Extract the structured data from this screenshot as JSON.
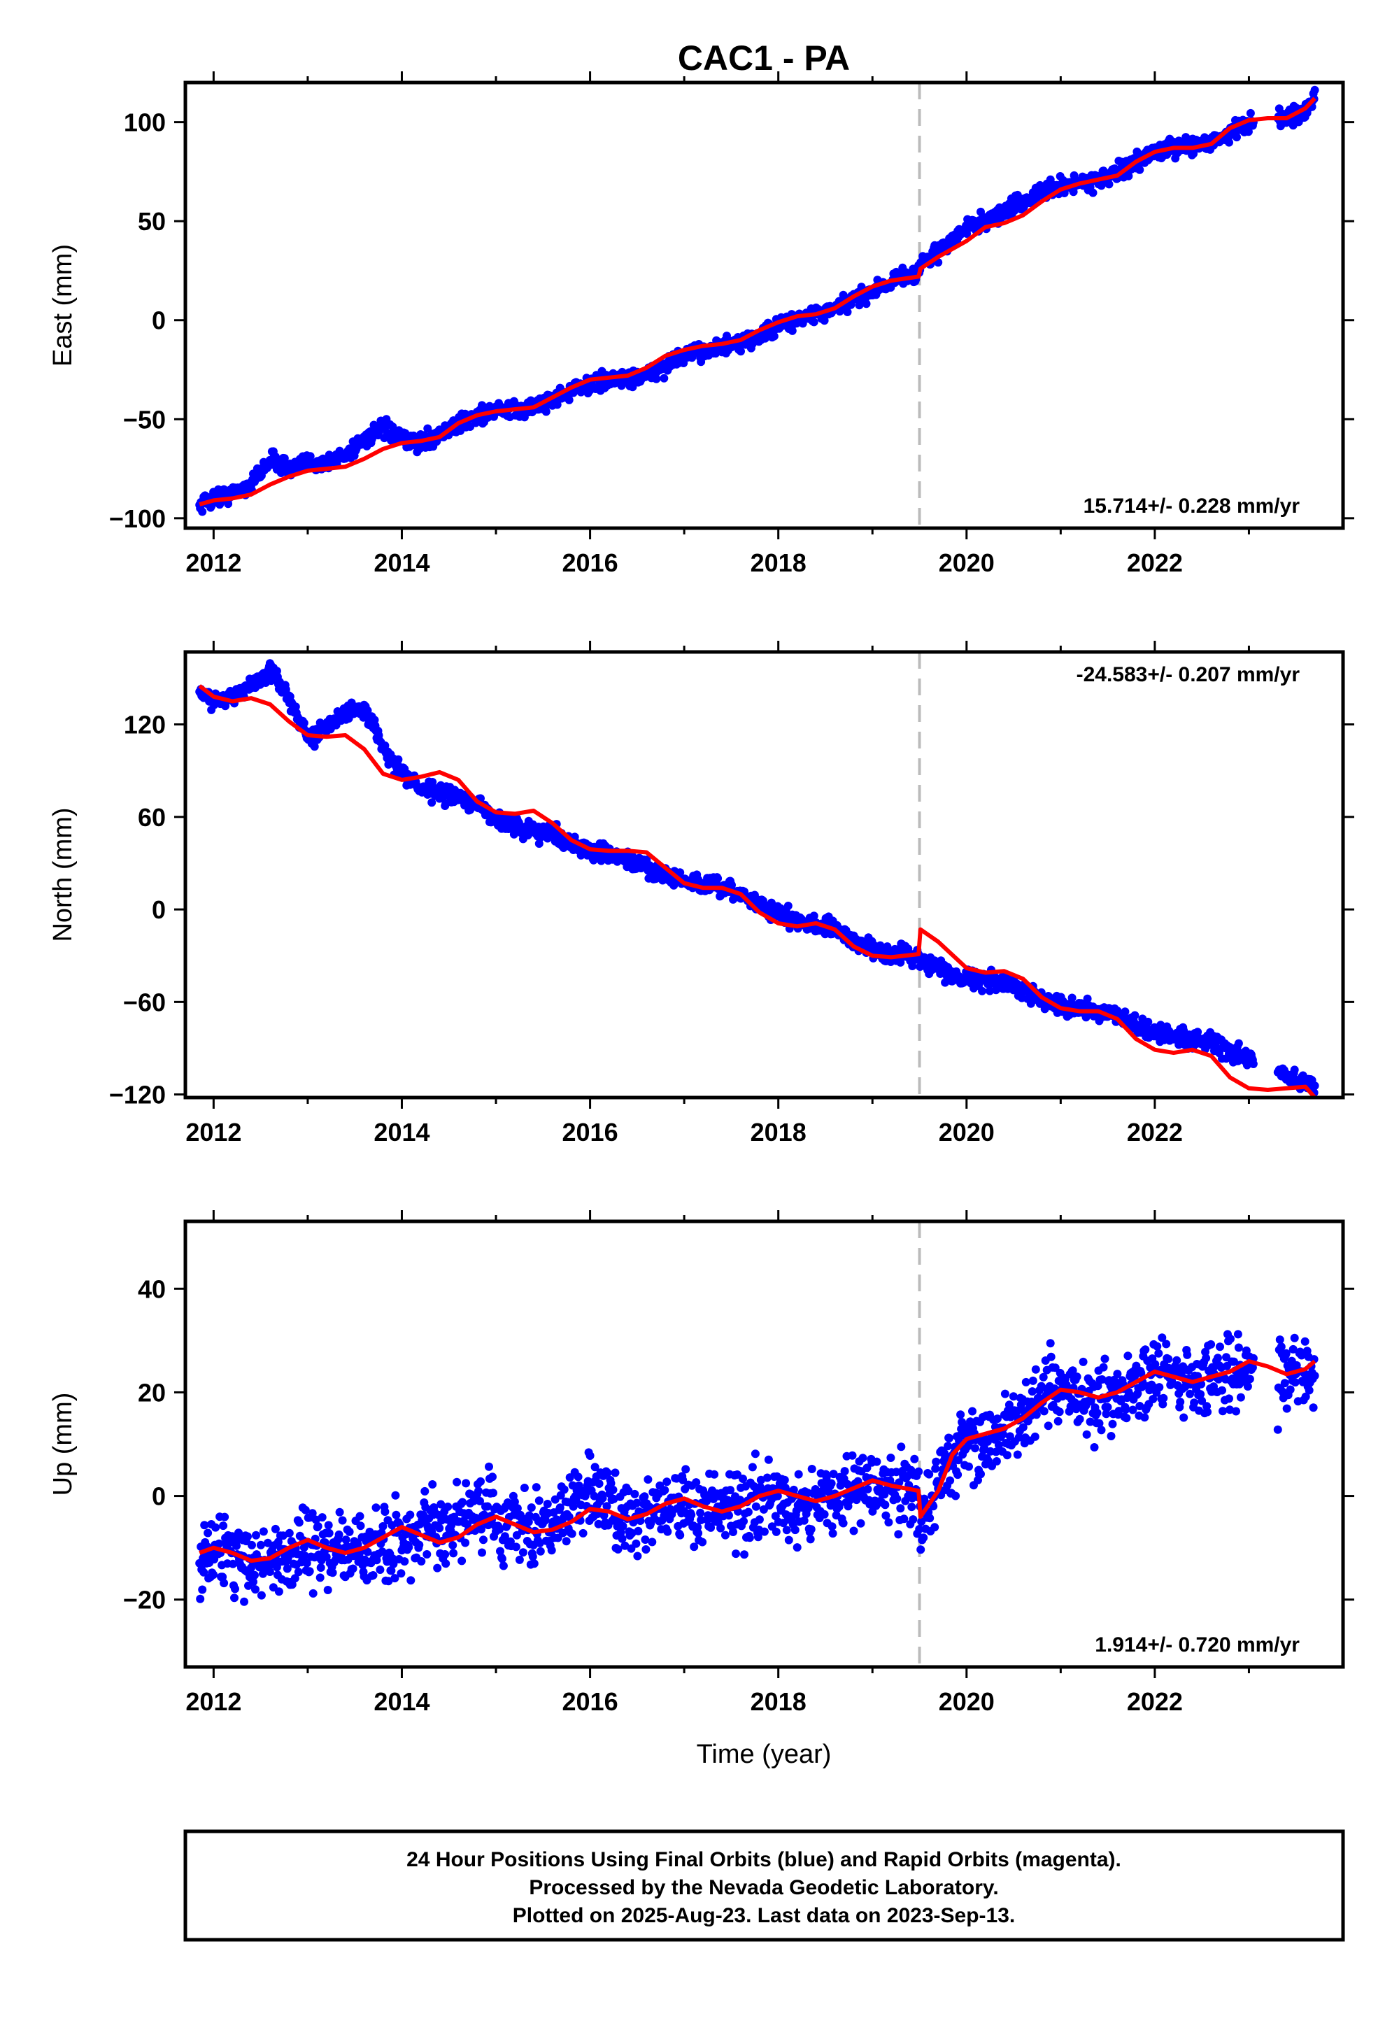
{
  "title": "CAC1 - PA",
  "x_axis_label": "Time (year)",
  "colors": {
    "final_orbits": "#0000ff",
    "model_fit": "#ff0000",
    "offset_marker": "#bbbbbb",
    "frame": "#000000"
  },
  "chart_data": [
    {
      "type": "scatter",
      "name": "east",
      "ylabel": "East (mm)",
      "xlim": [
        2011.7,
        2024.0
      ],
      "ylim": [
        -105,
        120
      ],
      "xticks": [
        2012,
        2014,
        2016,
        2018,
        2020,
        2022
      ],
      "yticks": [
        -100,
        -50,
        0,
        50,
        100
      ],
      "offset_epoch": 2019.5,
      "rate_text": "15.714+/- 0.228 mm/yr",
      "rate_position": "bottom-right",
      "noise": 3,
      "observations_x": [
        2011.85,
        2012.0,
        2012.2,
        2012.4,
        2012.6,
        2012.8,
        2013.0,
        2013.2,
        2013.4,
        2013.6,
        2013.8,
        2014.0,
        2014.2,
        2014.5,
        2014.8,
        2015.0,
        2015.3,
        2015.6,
        2016.0,
        2016.3,
        2016.6,
        2017.0,
        2017.3,
        2017.6,
        2018.0,
        2018.3,
        2018.6,
        2019.0,
        2019.3,
        2019.49,
        2019.51,
        2019.8,
        2020.0,
        2020.3,
        2020.6,
        2021.0,
        2021.3,
        2021.6,
        2022.0,
        2022.3,
        2022.6,
        2023.0,
        2023.3,
        2023.6,
        2023.7
      ],
      "observations_y": [
        -93,
        -90,
        -88,
        -83,
        -70,
        -75,
        -72,
        -72,
        -68,
        -60,
        -55,
        -60,
        -62,
        -55,
        -48,
        -46,
        -45,
        -40,
        -32,
        -30,
        -28,
        -18,
        -14,
        -12,
        -3,
        2,
        5,
        15,
        22,
        24,
        28,
        38,
        47,
        52,
        60,
        68,
        70,
        74,
        85,
        88,
        90,
        100,
        102,
        104,
        112
      ],
      "fit_x": [
        2011.85,
        2012.0,
        2012.2,
        2012.4,
        2012.6,
        2012.8,
        2013.0,
        2013.2,
        2013.4,
        2013.6,
        2013.8,
        2014.0,
        2014.2,
        2014.4,
        2014.6,
        2014.8,
        2015.0,
        2015.2,
        2015.4,
        2015.6,
        2015.8,
        2016.0,
        2016.2,
        2016.4,
        2016.6,
        2016.8,
        2017.0,
        2017.2,
        2017.4,
        2017.6,
        2017.8,
        2018.0,
        2018.2,
        2018.4,
        2018.6,
        2018.8,
        2019.0,
        2019.2,
        2019.49,
        2019.51,
        2019.7,
        2020.0,
        2020.2,
        2020.4,
        2020.6,
        2020.8,
        2021.0,
        2021.2,
        2021.4,
        2021.6,
        2021.8,
        2022.0,
        2022.2,
        2022.4,
        2022.6,
        2022.8,
        2023.0,
        2023.2,
        2023.4,
        2023.6,
        2023.7
      ],
      "fit_y": [
        -93,
        -91,
        -90,
        -88,
        -83,
        -79,
        -76,
        -75,
        -74,
        -70,
        -65,
        -62,
        -61,
        -59,
        -52,
        -48,
        -46,
        -45,
        -44,
        -39,
        -34,
        -30,
        -29,
        -28,
        -24,
        -18,
        -15,
        -13,
        -12,
        -10,
        -5,
        -1,
        2,
        3,
        6,
        12,
        17,
        20,
        22,
        26,
        32,
        40,
        47,
        49,
        53,
        60,
        66,
        69,
        71,
        73,
        80,
        85,
        87,
        87,
        89,
        97,
        101,
        102,
        102,
        107,
        112
      ]
    },
    {
      "type": "scatter",
      "name": "north",
      "ylabel": "North (mm)",
      "xlim": [
        2011.7,
        2024.0
      ],
      "ylim": [
        -122,
        167
      ],
      "xticks": [
        2012,
        2014,
        2016,
        2018,
        2020,
        2022
      ],
      "yticks": [
        -120,
        -60,
        0,
        60,
        120
      ],
      "offset_epoch": 2019.5,
      "rate_text": "-24.583+/- 0.207 mm/yr",
      "rate_position": "top-right",
      "noise": 4,
      "observations_x": [
        2011.85,
        2012.0,
        2012.3,
        2012.6,
        2012.8,
        2013.0,
        2013.3,
        2013.6,
        2013.9,
        2014.2,
        2014.5,
        2014.8,
        2015.0,
        2015.3,
        2015.6,
        2015.9,
        2016.2,
        2016.5,
        2016.8,
        2017.0,
        2017.3,
        2017.6,
        2017.9,
        2018.2,
        2018.5,
        2018.8,
        2019.1,
        2019.49,
        2019.51,
        2019.8,
        2020.1,
        2020.4,
        2020.7,
        2021.0,
        2021.3,
        2021.6,
        2021.9,
        2022.2,
        2022.5,
        2022.8,
        2023.1,
        2023.4,
        2023.7
      ],
      "observations_y": [
        142,
        136,
        140,
        155,
        138,
        110,
        125,
        130,
        95,
        78,
        74,
        68,
        58,
        52,
        50,
        40,
        35,
        30,
        22,
        18,
        15,
        10,
        0,
        -8,
        -10,
        -20,
        -28,
        -30,
        -32,
        -42,
        -45,
        -48,
        -55,
        -62,
        -65,
        -70,
        -78,
        -82,
        -84,
        -92,
        -100,
        -108,
        -115
      ],
      "fit_x": [
        2011.85,
        2012.0,
        2012.2,
        2012.4,
        2012.6,
        2012.8,
        2013.0,
        2013.2,
        2013.4,
        2013.6,
        2013.8,
        2014.0,
        2014.2,
        2014.4,
        2014.6,
        2014.8,
        2015.0,
        2015.2,
        2015.4,
        2015.6,
        2015.8,
        2016.0,
        2016.2,
        2016.4,
        2016.6,
        2016.8,
        2017.0,
        2017.2,
        2017.4,
        2017.6,
        2017.8,
        2018.0,
        2018.2,
        2018.4,
        2018.6,
        2018.8,
        2019.0,
        2019.2,
        2019.49,
        2019.51,
        2019.7,
        2020.0,
        2020.2,
        2020.4,
        2020.6,
        2020.8,
        2021.0,
        2021.2,
        2021.4,
        2021.6,
        2021.8,
        2022.0,
        2022.2,
        2022.4,
        2022.6,
        2022.8,
        2023.0,
        2023.2,
        2023.4,
        2023.6,
        2023.7
      ],
      "fit_y": [
        145,
        138,
        135,
        137,
        133,
        122,
        113,
        112,
        113,
        104,
        88,
        84,
        86,
        89,
        84,
        70,
        63,
        62,
        64,
        56,
        45,
        39,
        38,
        38,
        37,
        27,
        17,
        14,
        14,
        10,
        -2,
        -9,
        -11,
        -9,
        -13,
        -24,
        -30,
        -31,
        -29,
        -13,
        -21,
        -38,
        -41,
        -40,
        -45,
        -57,
        -64,
        -66,
        -66,
        -71,
        -84,
        -91,
        -93,
        -91,
        -95,
        -109,
        -116,
        -117,
        -116,
        -115,
        -122
      ]
    },
    {
      "type": "scatter",
      "name": "up",
      "ylabel": "Up (mm)",
      "xlim": [
        2011.7,
        2024.0
      ],
      "ylim": [
        -33,
        53
      ],
      "xticks": [
        2012,
        2014,
        2016,
        2018,
        2020,
        2022
      ],
      "yticks": [
        -20,
        0,
        20,
        40
      ],
      "offset_epoch": 2019.5,
      "rate_text": "1.914+/- 0.720 mm/yr",
      "rate_position": "bottom-right",
      "noise": 5,
      "observations_x": [
        2011.85,
        2012.1,
        2012.4,
        2012.7,
        2013.0,
        2013.3,
        2013.6,
        2013.9,
        2014.2,
        2014.5,
        2014.8,
        2015.1,
        2015.4,
        2015.7,
        2016.0,
        2016.3,
        2016.6,
        2016.9,
        2017.2,
        2017.5,
        2017.8,
        2018.1,
        2018.4,
        2018.7,
        2019.0,
        2019.3,
        2019.49,
        2019.51,
        2019.8,
        2020.0,
        2020.3,
        2020.6,
        2020.9,
        2021.2,
        2021.5,
        2021.8,
        2022.1,
        2022.4,
        2022.7,
        2023.0,
        2023.3,
        2023.6,
        2023.7
      ],
      "observations_y": [
        -12,
        -10,
        -13,
        -12,
        -9,
        -11,
        -11,
        -9,
        -7,
        -8,
        -2,
        -6,
        -7,
        -4,
        2,
        -4,
        -3,
        -1,
        -3,
        -3,
        -1,
        -1,
        -1,
        1,
        1,
        1,
        1,
        -4,
        6,
        10,
        11,
        15,
        20,
        19,
        19,
        22,
        23,
        22,
        23,
        26,
        23,
        24,
        24
      ],
      "fit_x": [
        2011.85,
        2012.0,
        2012.2,
        2012.4,
        2012.6,
        2012.8,
        2013.0,
        2013.2,
        2013.4,
        2013.6,
        2013.8,
        2014.0,
        2014.2,
        2014.4,
        2014.6,
        2014.8,
        2015.0,
        2015.2,
        2015.4,
        2015.6,
        2015.8,
        2016.0,
        2016.2,
        2016.4,
        2016.6,
        2016.8,
        2017.0,
        2017.2,
        2017.4,
        2017.6,
        2017.8,
        2018.0,
        2018.2,
        2018.4,
        2018.6,
        2018.8,
        2019.0,
        2019.2,
        2019.49,
        2019.51,
        2019.7,
        2019.85,
        2020.0,
        2020.2,
        2020.4,
        2020.6,
        2020.8,
        2021.0,
        2021.2,
        2021.4,
        2021.6,
        2021.8,
        2022.0,
        2022.2,
        2022.4,
        2022.6,
        2022.8,
        2023.0,
        2023.2,
        2023.4,
        2023.6,
        2023.7
      ],
      "fit_y": [
        -11,
        -10,
        -11,
        -12.5,
        -12,
        -10,
        -8.5,
        -10,
        -11,
        -10,
        -8,
        -6,
        -7.5,
        -9,
        -8,
        -5.5,
        -4,
        -5.5,
        -7,
        -6.5,
        -5,
        -2.5,
        -3,
        -4.5,
        -3.5,
        -1.5,
        -0.5,
        -2,
        -3,
        -2,
        0,
        1,
        0,
        -1,
        0,
        1.5,
        3,
        2,
        1,
        -4,
        1,
        8,
        11,
        12,
        13,
        15,
        18,
        20.5,
        20,
        19,
        20,
        22,
        24,
        23,
        22,
        23,
        24,
        26,
        25,
        23.5,
        24.5,
        26
      ]
    }
  ],
  "notes": [
    "24 Hour Positions Using Final Orbits (blue) and Rapid Orbits (magenta).",
    "Processed by the Nevada Geodetic Laboratory.",
    "Plotted on 2025-Aug-23. Last data on 2023-Sep-13."
  ]
}
